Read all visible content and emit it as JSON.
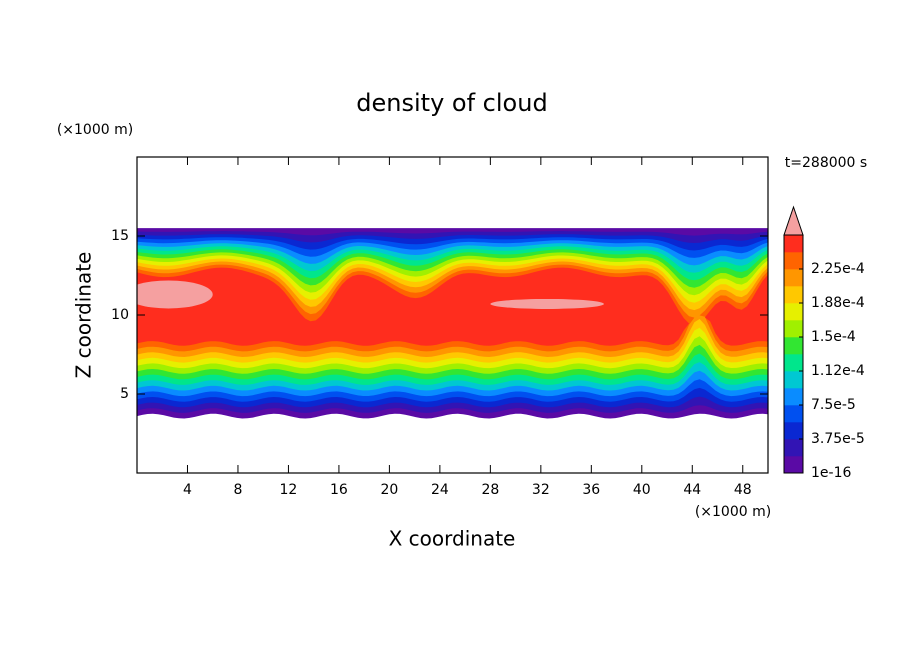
{
  "chart_data": {
    "type": "contour",
    "title": "density of cloud",
    "x_label": "X coordinate",
    "y_label": "Z coordinate",
    "x_unit": "(×1000 m)",
    "y_unit": "(×1000 m)",
    "time_label": "t=288000 s",
    "xlim": [
      0,
      50
    ],
    "xticks": [
      4,
      8,
      12,
      16,
      20,
      24,
      28,
      32,
      36,
      40,
      44,
      48
    ],
    "ylim": [
      0,
      20
    ],
    "yticks": [
      5,
      10,
      15
    ],
    "colorbar": {
      "lim": [
        1e-16,
        0.0002625
      ],
      "ticks": [
        {
          "value": 1e-16,
          "label": "1e-16"
        },
        {
          "value": 3.75e-05,
          "label": "3.75e-5"
        },
        {
          "value": 7.5e-05,
          "label": "7.5e-5"
        },
        {
          "value": 0.0001125,
          "label": "1.12e-4"
        },
        {
          "value": 0.00015,
          "label": "1.5e-4"
        },
        {
          "value": 0.0001875,
          "label": "1.88e-4"
        },
        {
          "value": 0.000225,
          "label": "2.25e-4"
        }
      ],
      "colors": [
        "#5a0aa5",
        "#3214b4",
        "#0a28d2",
        "#0050f0",
        "#0a8cff",
        "#00c8d2",
        "#00e68c",
        "#32e632",
        "#a0f000",
        "#e6f000",
        "#ffc800",
        "#ff9600",
        "#ff6400",
        "#ff2d1e"
      ],
      "extend_color": "#f5a0a0"
    }
  }
}
